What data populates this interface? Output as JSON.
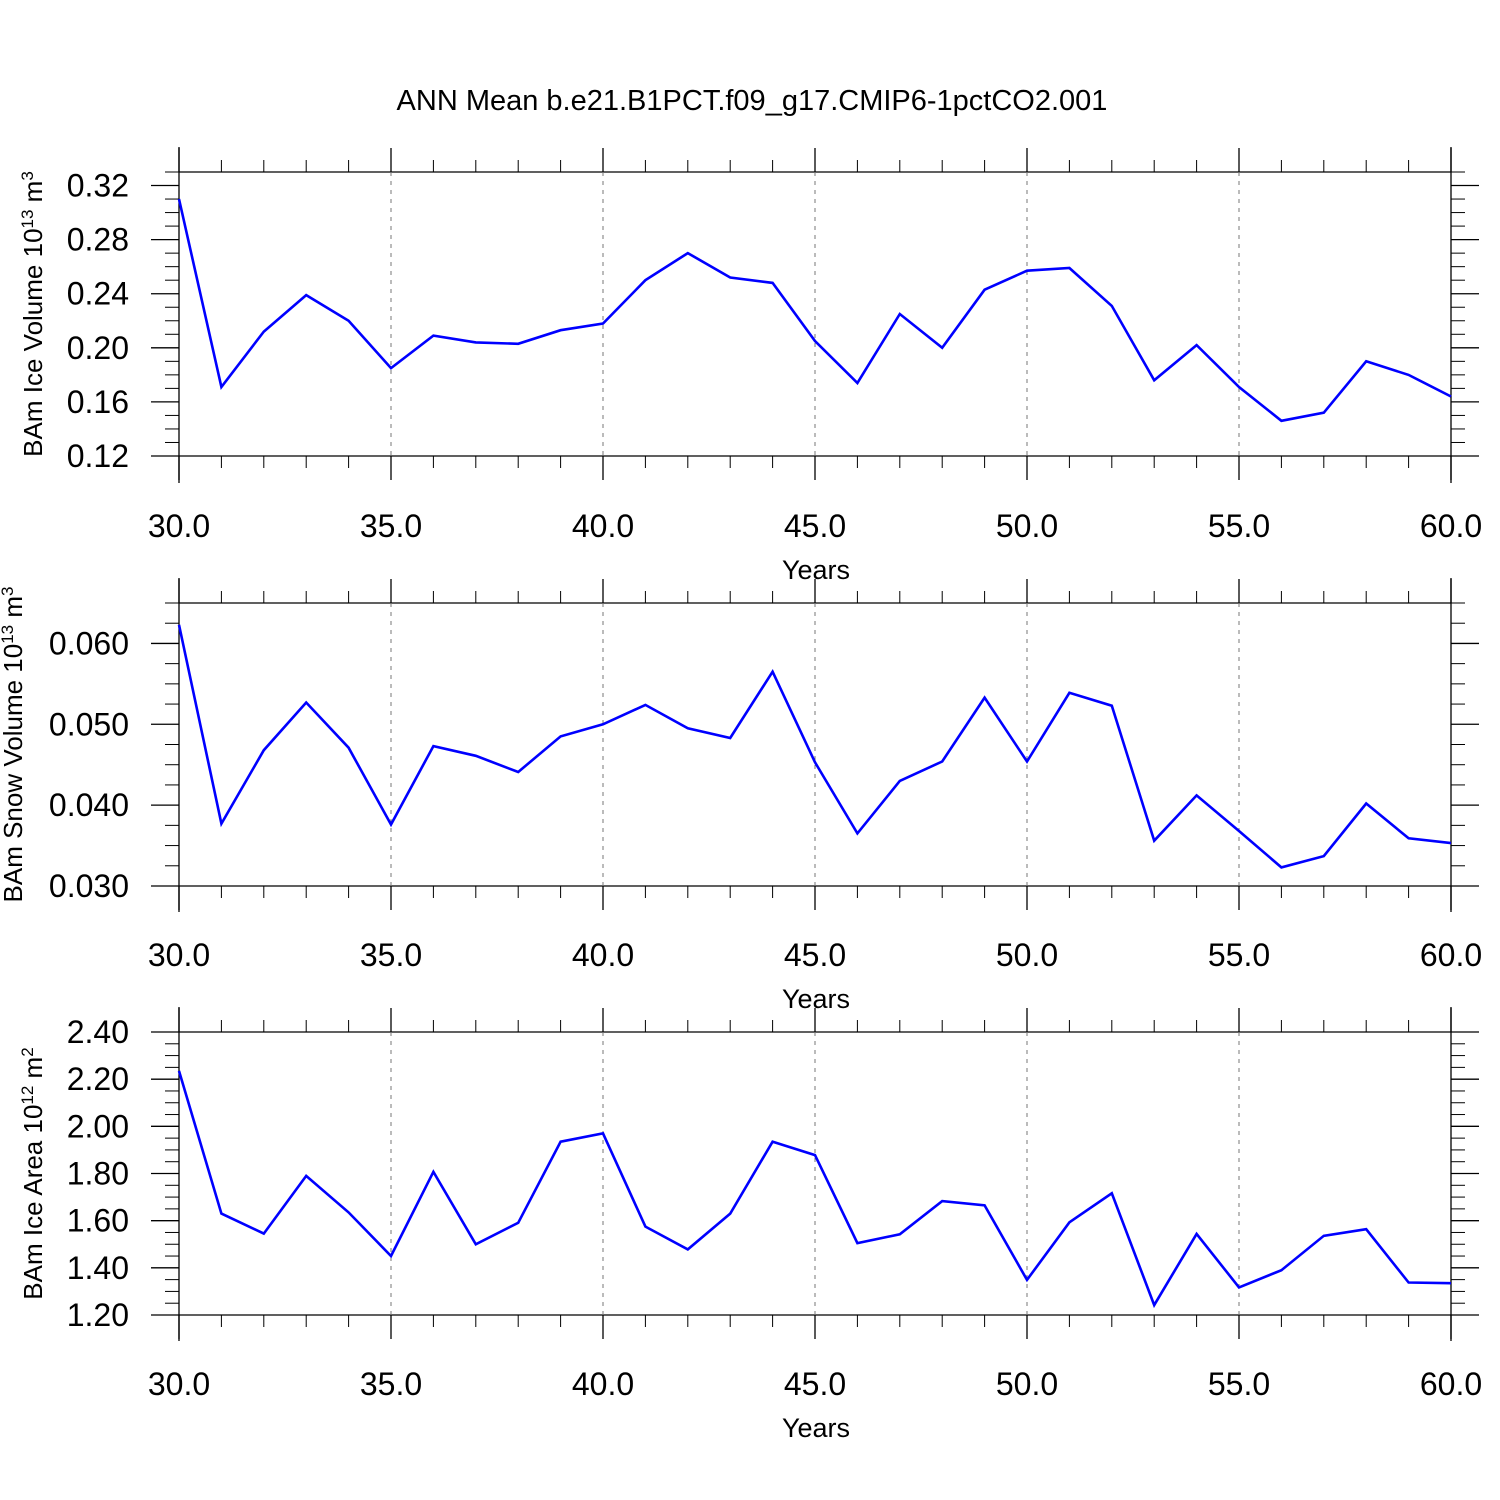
{
  "title": "ANN Mean b.e21.B1PCT.f09_g17.CMIP6-1pctCO2.001",
  "line_color": "#0000ff",
  "chart_data": [
    {
      "type": "line",
      "ylabel": "BAm Ice Volume 10",
      "ylabel_sup": "13",
      "ylabel_unit": "m",
      "ylabel_unit_sup": "3",
      "xlabel": "Years",
      "xlim": [
        30,
        60
      ],
      "ylim": [
        0.12,
        0.33
      ],
      "yticks": [
        "0.12",
        "0.16",
        "0.20",
        "0.24",
        "0.28",
        "0.32"
      ],
      "xticks": [
        "30.0",
        "35.0",
        "40.0",
        "45.0",
        "50.0",
        "55.0",
        "60.0"
      ],
      "grid": "vertical dashed",
      "x": [
        30,
        31,
        32,
        33,
        34,
        35,
        36,
        37,
        38,
        39,
        40,
        41,
        42,
        43,
        44,
        45,
        46,
        47,
        48,
        49,
        50,
        51,
        52,
        53,
        54,
        55,
        56,
        57,
        58,
        59,
        60
      ],
      "series": [
        {
          "values": [
            0.31,
            0.171,
            0.212,
            0.239,
            0.22,
            0.185,
            0.209,
            0.204,
            0.203,
            0.213,
            0.218,
            0.25,
            0.27,
            0.252,
            0.248,
            0.205,
            0.174,
            0.225,
            0.2,
            0.243,
            0.257,
            0.259,
            0.231,
            0.176,
            0.202,
            0.171,
            0.146,
            0.152,
            0.19,
            0.18,
            0.164
          ]
        }
      ]
    },
    {
      "type": "line",
      "ylabel": "BAm Snow Volume 10",
      "ylabel_sup": "13",
      "ylabel_unit": "m",
      "ylabel_unit_sup": "3",
      "xlabel": "Years",
      "xlim": [
        30,
        60
      ],
      "ylim": [
        0.03,
        0.065
      ],
      "yticks": [
        "0.030",
        "0.040",
        "0.050",
        "0.060"
      ],
      "xticks": [
        "30.0",
        "35.0",
        "40.0",
        "45.0",
        "50.0",
        "55.0",
        "60.0"
      ],
      "grid": "vertical dashed",
      "x": [
        30,
        31,
        32,
        33,
        34,
        35,
        36,
        37,
        38,
        39,
        40,
        41,
        42,
        43,
        44,
        45,
        46,
        47,
        48,
        49,
        50,
        51,
        52,
        53,
        54,
        55,
        56,
        57,
        58,
        59,
        60
      ],
      "series": [
        {
          "values": [
            0.0623,
            0.0377,
            0.0468,
            0.0527,
            0.0471,
            0.0376,
            0.0473,
            0.0461,
            0.0441,
            0.0485,
            0.05,
            0.0524,
            0.0495,
            0.0483,
            0.0565,
            0.0453,
            0.0365,
            0.043,
            0.0454,
            0.0533,
            0.0454,
            0.0539,
            0.0523,
            0.0356,
            0.0412,
            0.0368,
            0.0323,
            0.0337,
            0.0402,
            0.0359,
            0.0353
          ]
        }
      ]
    },
    {
      "type": "line",
      "ylabel": "BAm Ice Area 10",
      "ylabel_sup": "12",
      "ylabel_unit": "m",
      "ylabel_unit_sup": "2",
      "xlabel": "Years",
      "xlim": [
        30,
        60
      ],
      "ylim": [
        1.2,
        2.4
      ],
      "yticks": [
        "1.20",
        "1.40",
        "1.60",
        "1.80",
        "2.00",
        "2.20",
        "2.40"
      ],
      "xticks": [
        "30.0",
        "35.0",
        "40.0",
        "45.0",
        "50.0",
        "55.0",
        "60.0"
      ],
      "grid": "vertical dashed",
      "x": [
        30,
        31,
        32,
        33,
        34,
        35,
        36,
        37,
        38,
        39,
        40,
        41,
        42,
        43,
        44,
        45,
        46,
        47,
        48,
        49,
        50,
        51,
        52,
        53,
        54,
        55,
        56,
        57,
        58,
        59,
        60
      ],
      "series": [
        {
          "values": [
            2.235,
            1.63,
            1.545,
            1.79,
            1.635,
            1.45,
            1.807,
            1.5,
            1.591,
            1.935,
            1.97,
            1.575,
            1.478,
            1.63,
            1.935,
            1.878,
            1.505,
            1.542,
            1.683,
            1.665,
            1.349,
            1.593,
            1.716,
            1.242,
            1.544,
            1.317,
            1.39,
            1.536,
            1.564,
            1.338,
            1.335
          ]
        }
      ]
    }
  ]
}
